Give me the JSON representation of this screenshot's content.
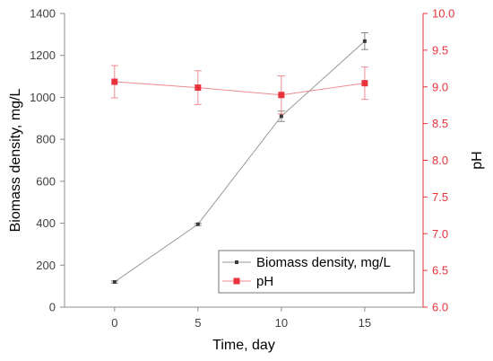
{
  "chart_data": {
    "type": "line",
    "title": "",
    "xlabel": "Time, day",
    "ylabel_left": "Biomass density, mg/L",
    "ylabel_right": "pH",
    "x": [
      0,
      5,
      10,
      15
    ],
    "x_ticks": [
      "0",
      "5",
      "10",
      "15"
    ],
    "xlim": [
      -3,
      18.5
    ],
    "ylim_left": [
      0,
      1400
    ],
    "y_ticks_left": [
      "0",
      "200",
      "400",
      "600",
      "800",
      "1000",
      "1200",
      "1400"
    ],
    "ylim_right": [
      6.0,
      10.0
    ],
    "y_ticks_right": [
      "6.0",
      "6.5",
      "7.0",
      "7.5",
      "8.0",
      "8.5",
      "9.0",
      "9.5",
      "10.0"
    ],
    "grid": false,
    "legend_position": "bottom-right",
    "series": [
      {
        "name": "Biomass density, mg/L",
        "axis": "left",
        "values": [
          120,
          395,
          910,
          1268
        ],
        "errors": [
          5,
          5,
          25,
          40
        ],
        "color": "#3a3a3a",
        "line_color": "#9a9a9a"
      },
      {
        "name": "pH",
        "axis": "right",
        "values": [
          9.07,
          8.99,
          8.89,
          9.05
        ],
        "errors": [
          0.22,
          0.23,
          0.26,
          0.22
        ],
        "color": "#e8323c",
        "line_color": "#f08a8f"
      }
    ]
  }
}
